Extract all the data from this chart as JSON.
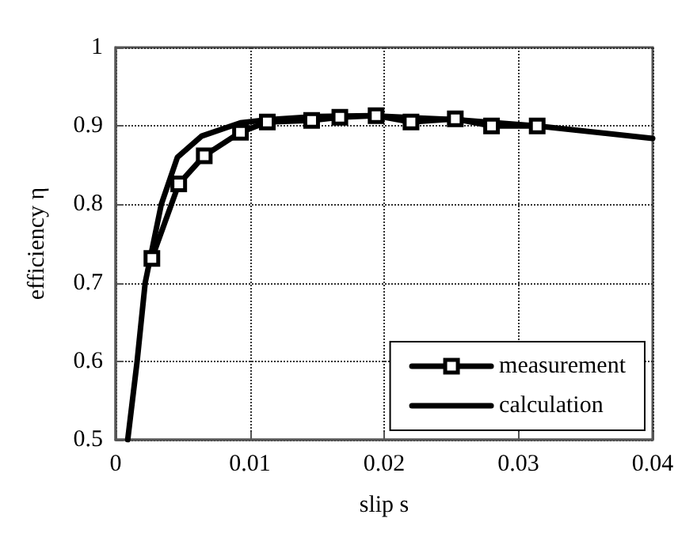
{
  "chart_data": {
    "type": "line",
    "xlabel": "slip s",
    "ylabel": "efficiency η",
    "xlim": [
      0,
      0.04
    ],
    "xticks": [
      0,
      0.01,
      0.02,
      0.03,
      0.04
    ],
    "ylim": [
      0.5,
      1
    ],
    "yticks": [
      0.5,
      0.6,
      0.7,
      0.8,
      0.9,
      1
    ],
    "grid": true,
    "legend": "bottom right",
    "line_style": "solid",
    "series": [
      {
        "name": "measurement",
        "color": "#000000",
        "marker": "square",
        "x": [
          0.0027,
          0.0047,
          0.0066,
          0.0093,
          0.0113,
          0.0146,
          0.0167,
          0.0194,
          0.022,
          0.0253,
          0.028,
          0.0314
        ],
        "values": [
          0.731,
          0.826,
          0.862,
          0.892,
          0.905,
          0.907,
          0.911,
          0.913,
          0.905,
          0.909,
          0.9,
          0.9
        ]
      },
      {
        "name": "calculation",
        "color": "#000000",
        "marker": "none",
        "x": [
          0.0009,
          0.0016,
          0.0022,
          0.0034,
          0.0046,
          0.0064,
          0.0093,
          0.0114,
          0.015,
          0.019,
          0.0253,
          0.0314,
          0.04
        ],
        "values": [
          0.5,
          0.6,
          0.7,
          0.8,
          0.86,
          0.887,
          0.904,
          0.908,
          0.912,
          0.913,
          0.908,
          0.9,
          0.884
        ]
      }
    ]
  }
}
